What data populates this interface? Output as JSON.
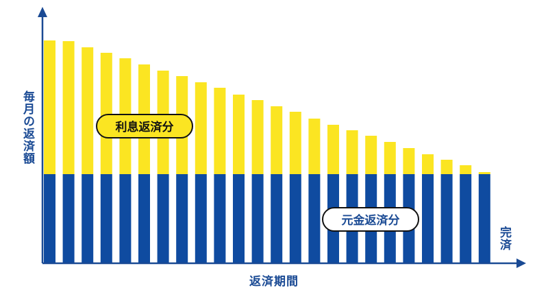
{
  "labels": {
    "y_axis": "毎月の返済額",
    "x_axis": "返済期間",
    "end": "完済",
    "interest": "利息返済分",
    "principal": "元金返済分"
  },
  "colors": {
    "interest": "#fbe522",
    "principal": "#0f4ba0",
    "axis": "#1a4a94"
  },
  "chart_data": {
    "type": "bar",
    "stacked": true,
    "title": "",
    "xlabel": "返済期間",
    "ylabel": "毎月の返済額",
    "series": [
      {
        "name": "利息返済分",
        "values": [
          195,
          194,
          185,
          177,
          169,
          160,
          151,
          143,
          134,
          126,
          116,
          108,
          99,
          91,
          81,
          72,
          64,
          56,
          47,
          38,
          29,
          21,
          13,
          3
        ]
      },
      {
        "name": "元金返済分",
        "values": [
          130,
          130,
          130,
          130,
          130,
          130,
          130,
          130,
          130,
          130,
          130,
          130,
          130,
          130,
          130,
          130,
          130,
          130,
          130,
          130,
          130,
          130,
          130,
          130
        ]
      }
    ],
    "ylim": [
      0,
      330
    ],
    "grid": false,
    "legend": "none"
  }
}
